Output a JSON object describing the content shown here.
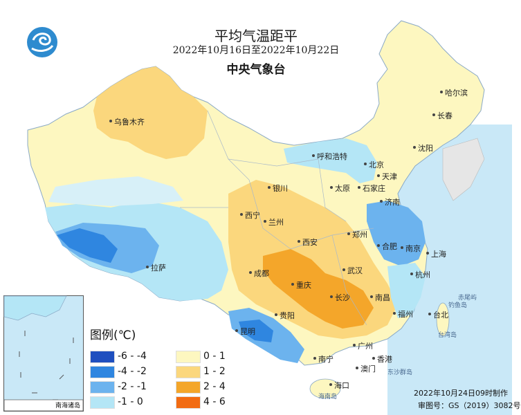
{
  "header": {
    "title": "平均气温距平",
    "period": "2022年10月16日至2022年10月22日",
    "organization": "中央气象台"
  },
  "legend": {
    "title": "图例(℃)",
    "items": [
      {
        "label": "-6 - -4",
        "color": "#1f4fbf"
      },
      {
        "label": "-4 - -2",
        "color": "#2f86e0"
      },
      {
        "label": "-2 - -1",
        "color": "#6cb3ee"
      },
      {
        "label": "-1 - 0",
        "color": "#b4e6f6"
      },
      {
        "label": "0 - 1",
        "color": "#fdf7c0"
      },
      {
        "label": "1 - 2",
        "color": "#fbd77d"
      },
      {
        "label": "2 - 4",
        "color": "#f4a62a"
      },
      {
        "label": "4 - 6",
        "color": "#f26b12"
      }
    ]
  },
  "cities": [
    "哈尔滨",
    "长春",
    "沈阳",
    "乌鲁木齐",
    "呼和浩特",
    "北京",
    "天津",
    "银川",
    "太原",
    "石家庄",
    "济南",
    "西宁",
    "兰州",
    "郑州",
    "西安",
    "合肥",
    "南京",
    "上海",
    "拉萨",
    "成都",
    "武汉",
    "重庆",
    "杭州",
    "长沙",
    "南昌",
    "贵阳",
    "福州",
    "台北",
    "昆明",
    "广州",
    "南宁",
    "香港",
    "澳门",
    "海口"
  ],
  "seas": [
    "台湾岛",
    "钓鱼岛",
    "赤尾屿",
    "东沙群岛",
    "海南岛"
  ],
  "inset_label": "南海诸岛",
  "footer": {
    "made": "2022年10月24日09时制作",
    "approval": "审图号：GS（2019）3082号"
  }
}
